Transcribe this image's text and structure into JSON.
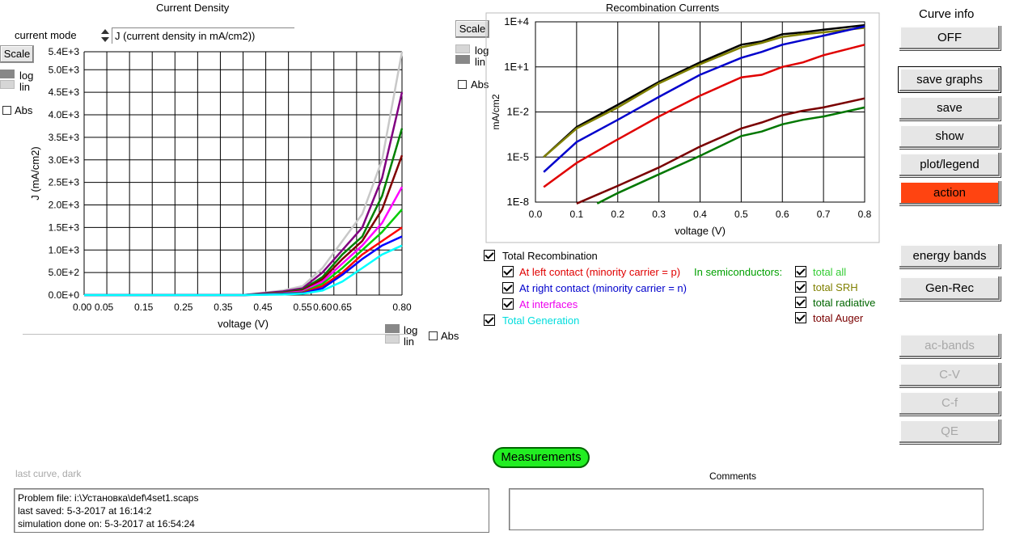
{
  "left_panel": {
    "title": "Current Density",
    "mode_label": "current mode",
    "mode_value": "J (current density in mA/cm2))",
    "scale_label": "Scale",
    "log_label": "log",
    "lin_label": "lin",
    "abs_label": "Abs",
    "bottom_log_label": "log",
    "bottom_lin_label": "lin",
    "bottom_abs_label": "Abs"
  },
  "right_panel": {
    "title": "Recombination Currents",
    "scale_label": "Scale",
    "log_label": "log",
    "lin_label": "lin",
    "abs_label": "Abs"
  },
  "legend": {
    "total_recombination": "Total Recombination",
    "left_contact": "At left contact (minority carrier = p)",
    "right_contact": "At right contact (minority carrier = n)",
    "interfaces": "At interfaces",
    "total_generation": "Total Generation",
    "in_semiconductors": "In semiconductors:",
    "total_all": "total all",
    "total_srh": "total SRH",
    "total_radiative": "total radiative",
    "total_auger": "total Auger",
    "colors": {
      "left_contact": "#e00000",
      "right_contact": "#0000cc",
      "interfaces": "#ee00ee",
      "total_generation": "#00dddd",
      "in_semiconductors": "#00a000",
      "total_all": "#33cc33",
      "total_srh": "#808000",
      "total_radiative": "#006600",
      "total_auger": "#7a0000"
    }
  },
  "side_buttons": {
    "curve_info_label": "Curve info",
    "off": "OFF",
    "save_graphs": "save graphs",
    "save": "save",
    "show": "show",
    "plot_legend": "plot/legend",
    "action": "action",
    "energy_bands": "energy bands",
    "gen_rec": "Gen-Rec",
    "ac_bands": "ac-bands",
    "cv": "C-V",
    "cf": "C-f",
    "qe": "QE"
  },
  "bottom": {
    "measurements": "Measurements",
    "last_curve": "last curve, dark",
    "comments_label": "Comments",
    "problem_file": "Problem file: i:\\Установка\\def\\4set1.scaps",
    "last_saved": "last saved: 5-3-2017 at 16:14:2",
    "simulation_done": "simulation done on: 5-3-2017 at 16:54:24"
  },
  "chart_data": [
    {
      "type": "line",
      "title": "Current Density",
      "xlabel": "voltage (V)",
      "ylabel": "J (mA/cm2)",
      "xlim": [
        0.0,
        0.8
      ],
      "ylim": [
        0,
        5400
      ],
      "x_tick_labels": [
        "0.00",
        "0.05",
        "0.15",
        "0.25",
        "0.35",
        "0.45",
        "0.55",
        "0.60",
        "0.65",
        "0.80"
      ],
      "x_ticks": [
        0.0,
        0.05,
        0.15,
        0.25,
        0.35,
        0.45,
        0.55,
        0.6,
        0.65,
        0.8
      ],
      "y_tick_labels": [
        "0.0E+0",
        "5.0E+2",
        "1.0E+3",
        "1.5E+3",
        "2.0E+3",
        "2.5E+3",
        "3.0E+3",
        "3.5E+3",
        "4.0E+3",
        "4.5E+3",
        "5.0E+3",
        "5.4E+3"
      ],
      "y_ticks": [
        0,
        500,
        1000,
        1500,
        2000,
        2500,
        3000,
        3500,
        4000,
        4500,
        5000,
        5400
      ],
      "grid": true,
      "series": [
        {
          "color": "#c8c8c8",
          "x": [
            0,
            0.4,
            0.5,
            0.55,
            0.6,
            0.65,
            0.7,
            0.75,
            0.8
          ],
          "y": [
            0,
            0,
            100,
            200,
            600,
            1200,
            1800,
            3000,
            5400
          ]
        },
        {
          "color": "#800080",
          "x": [
            0,
            0.4,
            0.5,
            0.55,
            0.6,
            0.65,
            0.7,
            0.75,
            0.8
          ],
          "y": [
            0,
            0,
            80,
            150,
            500,
            1000,
            1500,
            2600,
            4500
          ]
        },
        {
          "color": "#008000",
          "x": [
            0,
            0.4,
            0.5,
            0.55,
            0.6,
            0.65,
            0.7,
            0.75,
            0.8
          ],
          "y": [
            0,
            0,
            60,
            120,
            400,
            900,
            1300,
            2200,
            3700
          ]
        },
        {
          "color": "#800000",
          "x": [
            0,
            0.4,
            0.5,
            0.55,
            0.6,
            0.65,
            0.7,
            0.75,
            0.8
          ],
          "y": [
            0,
            0,
            50,
            100,
            350,
            800,
            1200,
            1900,
            3100
          ]
        },
        {
          "color": "#ff00ff",
          "x": [
            0,
            0.4,
            0.5,
            0.55,
            0.6,
            0.65,
            0.7,
            0.75,
            0.8
          ],
          "y": [
            0,
            0,
            40,
            80,
            300,
            700,
            1100,
            1600,
            2400
          ]
        },
        {
          "color": "#00cc00",
          "x": [
            0,
            0.4,
            0.5,
            0.55,
            0.6,
            0.65,
            0.7,
            0.75,
            0.8
          ],
          "y": [
            0,
            0,
            30,
            60,
            250,
            600,
            1000,
            1400,
            1900
          ]
        },
        {
          "color": "#ff0000",
          "x": [
            0,
            0.4,
            0.5,
            0.55,
            0.6,
            0.65,
            0.7,
            0.75,
            0.8
          ],
          "y": [
            0,
            0,
            20,
            50,
            200,
            500,
            900,
            1200,
            1500
          ]
        },
        {
          "color": "#0000ff",
          "x": [
            0,
            0.4,
            0.5,
            0.55,
            0.6,
            0.65,
            0.7,
            0.75,
            0.8
          ],
          "y": [
            0,
            0,
            20,
            40,
            150,
            450,
            800,
            1100,
            1300
          ]
        },
        {
          "color": "#00ffff",
          "x": [
            0,
            0.4,
            0.5,
            0.55,
            0.6,
            0.65,
            0.7,
            0.75,
            0.8
          ],
          "y": [
            0,
            0,
            10,
            30,
            100,
            300,
            600,
            900,
            1100
          ]
        }
      ]
    },
    {
      "type": "line",
      "title": "Recombination Currents",
      "xlabel": "voltage (V)",
      "ylabel": "mA/cm2",
      "xlim": [
        0.0,
        0.8
      ],
      "ylim": [
        1e-08,
        10000
      ],
      "yscale": "log",
      "x_tick_labels": [
        "0.0",
        "0.1",
        "0.2",
        "0.3",
        "0.4",
        "0.5",
        "0.6",
        "0.7",
        "0.8"
      ],
      "y_tick_labels": [
        "1E-8",
        "1E-5",
        "1E-2",
        "1E+1",
        "1E+4"
      ],
      "grid": true,
      "series": [
        {
          "name": "total all",
          "color": "#000000",
          "x": [
            0.02,
            0.1,
            0.2,
            0.3,
            0.4,
            0.5,
            0.55,
            0.6,
            0.65,
            0.7,
            0.8
          ],
          "y": [
            1e-05,
            0.001,
            0.03,
            1,
            20,
            300,
            500,
            1500,
            2000,
            3000,
            6000
          ]
        },
        {
          "name": "total SRH",
          "color": "#808000",
          "x": [
            0.02,
            0.1,
            0.2,
            0.3,
            0.4,
            0.5,
            0.55,
            0.6,
            0.65,
            0.7,
            0.8
          ],
          "y": [
            1e-05,
            0.0008,
            0.02,
            0.8,
            15,
            200,
            400,
            1000,
            1500,
            2000,
            4000
          ]
        },
        {
          "name": "right contact",
          "color": "#0000cc",
          "x": [
            0.02,
            0.1,
            0.2,
            0.3,
            0.4,
            0.5,
            0.55,
            0.6,
            0.65,
            0.7,
            0.8
          ],
          "y": [
            1e-06,
            0.0001,
            0.003,
            0.1,
            3,
            40,
            100,
            300,
            600,
            1200,
            5000
          ]
        },
        {
          "name": "left contact",
          "color": "#e00000",
          "x": [
            0.02,
            0.1,
            0.2,
            0.3,
            0.4,
            0.5,
            0.55,
            0.6,
            0.65,
            0.7,
            0.8
          ],
          "y": [
            1e-07,
            4e-06,
            0.00015,
            0.005,
            0.12,
            2,
            3,
            10,
            20,
            60,
            300
          ]
        },
        {
          "name": "total Auger",
          "color": "#7a0000",
          "x": [
            0.1,
            0.2,
            0.3,
            0.4,
            0.5,
            0.55,
            0.6,
            0.65,
            0.7,
            0.8
          ],
          "y": [
            8e-09,
            1.2e-07,
            2e-06,
            5e-05,
            0.0008,
            0.002,
            0.006,
            0.012,
            0.02,
            0.08
          ]
        },
        {
          "name": "total radiative",
          "color": "#007700",
          "x": [
            0.15,
            0.2,
            0.3,
            0.4,
            0.5,
            0.55,
            0.6,
            0.65,
            0.7,
            0.8
          ],
          "y": [
            8e-09,
            4e-08,
            7e-07,
            1.2e-05,
            0.00025,
            0.0005,
            0.0015,
            0.003,
            0.005,
            0.02
          ]
        }
      ]
    }
  ]
}
